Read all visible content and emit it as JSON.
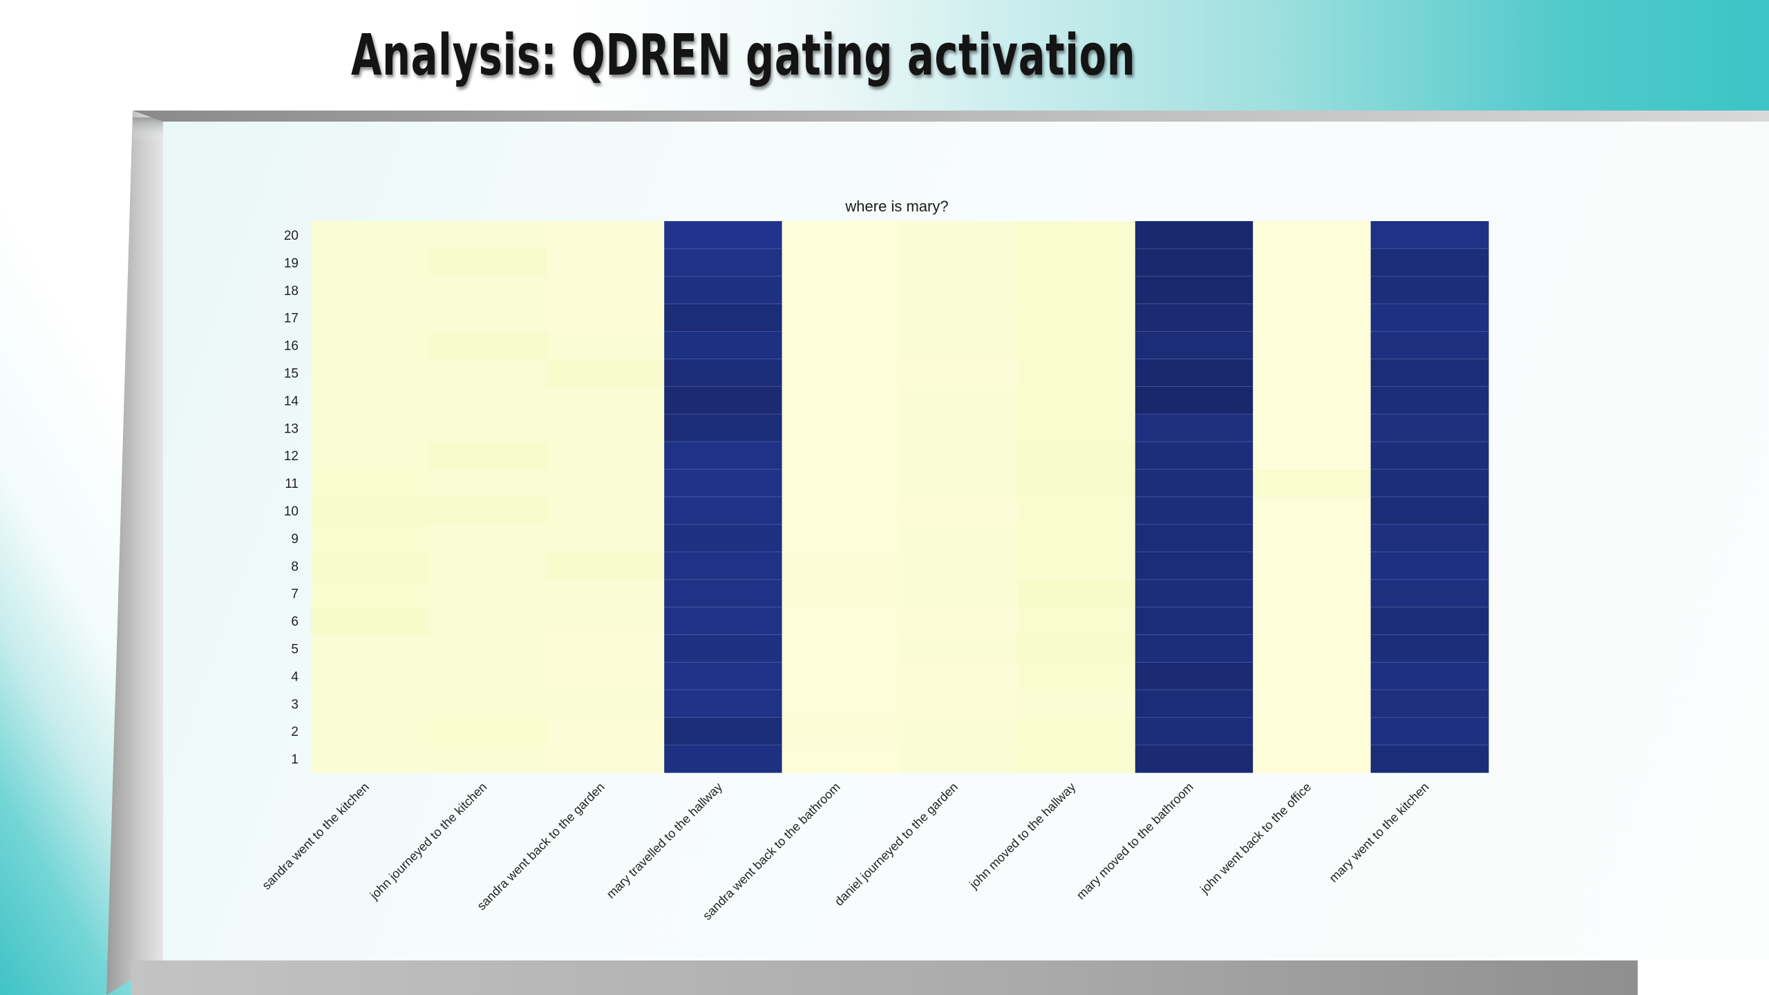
{
  "slide": {
    "title": "Analysis: QDREN gating activation"
  },
  "colors": {
    "low": "#fdfdd8",
    "high": "#192670",
    "accent": "#3cc4c6"
  },
  "chart_data": {
    "type": "heatmap",
    "title": "where is mary?",
    "xlabel": "",
    "ylabel": "",
    "colormap": "YlGnBu",
    "x_categories": [
      "sandra went to the kitchen",
      "john journeyed to the kitchen",
      "sandra went back to the garden",
      "mary travelled to the hallway",
      "sandra went back to the bathroom",
      "daniel journeyed to the garden",
      "john moved to the hallway",
      "mary moved to the bathroom",
      "john went back to the office",
      "mary went to the kitchen"
    ],
    "y_categories": [
      "1",
      "2",
      "3",
      "4",
      "5",
      "6",
      "7",
      "8",
      "9",
      "10",
      "11",
      "12",
      "13",
      "14",
      "15",
      "16",
      "17",
      "18",
      "19",
      "20"
    ],
    "grid": false,
    "values": [
      [
        0.02,
        0.02,
        0.01,
        0.93,
        0.0,
        0.02,
        0.03,
        0.97,
        0.0,
        0.96
      ],
      [
        0.02,
        0.03,
        0.01,
        0.96,
        0.01,
        0.02,
        0.03,
        0.95,
        0.0,
        0.93
      ],
      [
        0.02,
        0.02,
        0.02,
        0.92,
        0.0,
        0.01,
        0.02,
        0.96,
        0.0,
        0.94
      ],
      [
        0.02,
        0.02,
        0.01,
        0.91,
        0.0,
        0.01,
        0.03,
        0.97,
        0.0,
        0.93
      ],
      [
        0.02,
        0.02,
        0.01,
        0.93,
        0.0,
        0.02,
        0.04,
        0.95,
        0.0,
        0.95
      ],
      [
        0.05,
        0.02,
        0.02,
        0.92,
        0.0,
        0.01,
        0.03,
        0.96,
        0.0,
        0.96
      ],
      [
        0.03,
        0.02,
        0.02,
        0.92,
        0.01,
        0.02,
        0.05,
        0.95,
        0.0,
        0.94
      ],
      [
        0.04,
        0.02,
        0.04,
        0.92,
        0.01,
        0.02,
        0.03,
        0.96,
        0.0,
        0.93
      ],
      [
        0.03,
        0.02,
        0.02,
        0.93,
        0.0,
        0.02,
        0.03,
        0.96,
        0.0,
        0.94
      ],
      [
        0.04,
        0.04,
        0.02,
        0.92,
        0.0,
        0.01,
        0.03,
        0.95,
        0.0,
        0.96
      ],
      [
        0.03,
        0.02,
        0.02,
        0.91,
        0.0,
        0.02,
        0.04,
        0.95,
        0.03,
        0.95
      ],
      [
        0.02,
        0.04,
        0.02,
        0.92,
        0.0,
        0.02,
        0.04,
        0.95,
        0.0,
        0.95
      ],
      [
        0.02,
        0.02,
        0.02,
        0.96,
        0.0,
        0.02,
        0.03,
        0.94,
        0.0,
        0.94
      ],
      [
        0.02,
        0.02,
        0.02,
        0.97,
        0.0,
        0.02,
        0.03,
        0.99,
        0.0,
        0.95
      ],
      [
        0.02,
        0.02,
        0.04,
        0.96,
        0.0,
        0.01,
        0.03,
        0.98,
        0.0,
        0.96
      ],
      [
        0.02,
        0.04,
        0.02,
        0.93,
        0.0,
        0.02,
        0.03,
        0.96,
        0.0,
        0.94
      ],
      [
        0.02,
        0.02,
        0.01,
        0.96,
        0.0,
        0.02,
        0.03,
        0.97,
        0.0,
        0.93
      ],
      [
        0.02,
        0.02,
        0.01,
        0.93,
        0.0,
        0.02,
        0.03,
        0.98,
        0.0,
        0.95
      ],
      [
        0.02,
        0.04,
        0.01,
        0.92,
        0.0,
        0.02,
        0.03,
        0.98,
        0.0,
        0.96
      ],
      [
        0.02,
        0.02,
        0.01,
        0.9,
        0.0,
        0.02,
        0.03,
        0.98,
        0.0,
        0.92
      ]
    ]
  }
}
